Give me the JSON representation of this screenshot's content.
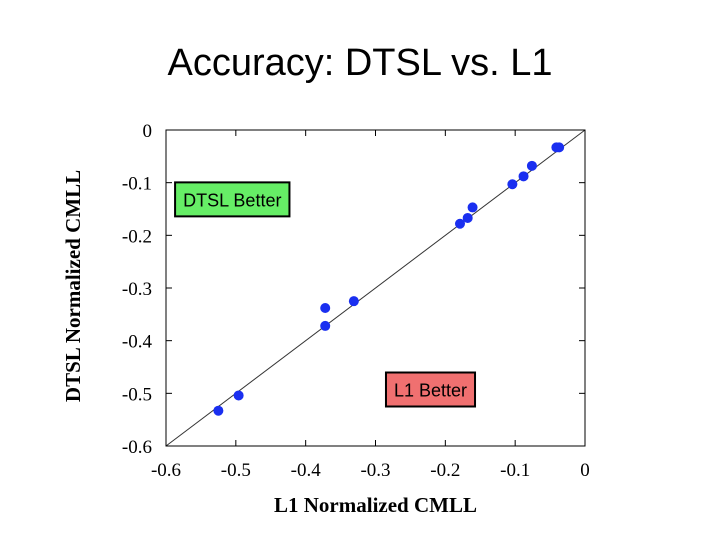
{
  "title": "Accuracy: DTSL vs. L1",
  "chart_data": {
    "type": "scatter",
    "title": "Accuracy: DTSL vs. L1",
    "xlabel": "L1 Normalized CMLL",
    "ylabel": "DTSL Normalized CMLL",
    "xlim": [
      -0.6,
      0
    ],
    "ylim": [
      -0.6,
      0
    ],
    "xticks": [
      "-0.6",
      "-0.5",
      "-0.4",
      "-0.3",
      "-0.2",
      "-0.1",
      "0"
    ],
    "yticks": [
      "-0.6",
      "-0.5",
      "-0.4",
      "-0.3",
      "-0.2",
      "-0.1",
      "0"
    ],
    "grid": false,
    "diagonal": true,
    "point_color": "#1a2ff0",
    "x": [
      -0.525,
      -0.496,
      -0.372,
      -0.372,
      -0.331,
      -0.179,
      -0.168,
      -0.161,
      -0.104,
      -0.088,
      -0.076,
      -0.041,
      -0.037
    ],
    "y": [
      -0.533,
      -0.504,
      -0.338,
      -0.372,
      -0.325,
      -0.178,
      -0.167,
      -0.147,
      -0.103,
      -0.088,
      -0.068,
      -0.033,
      -0.033
    ],
    "annotations": [
      {
        "text": "DTSL Better",
        "color": "#66ee66",
        "x": -0.587,
        "y": -0.164
      },
      {
        "text": "L1 Better",
        "color": "#f07070",
        "x": -0.285,
        "y": -0.525
      }
    ]
  }
}
